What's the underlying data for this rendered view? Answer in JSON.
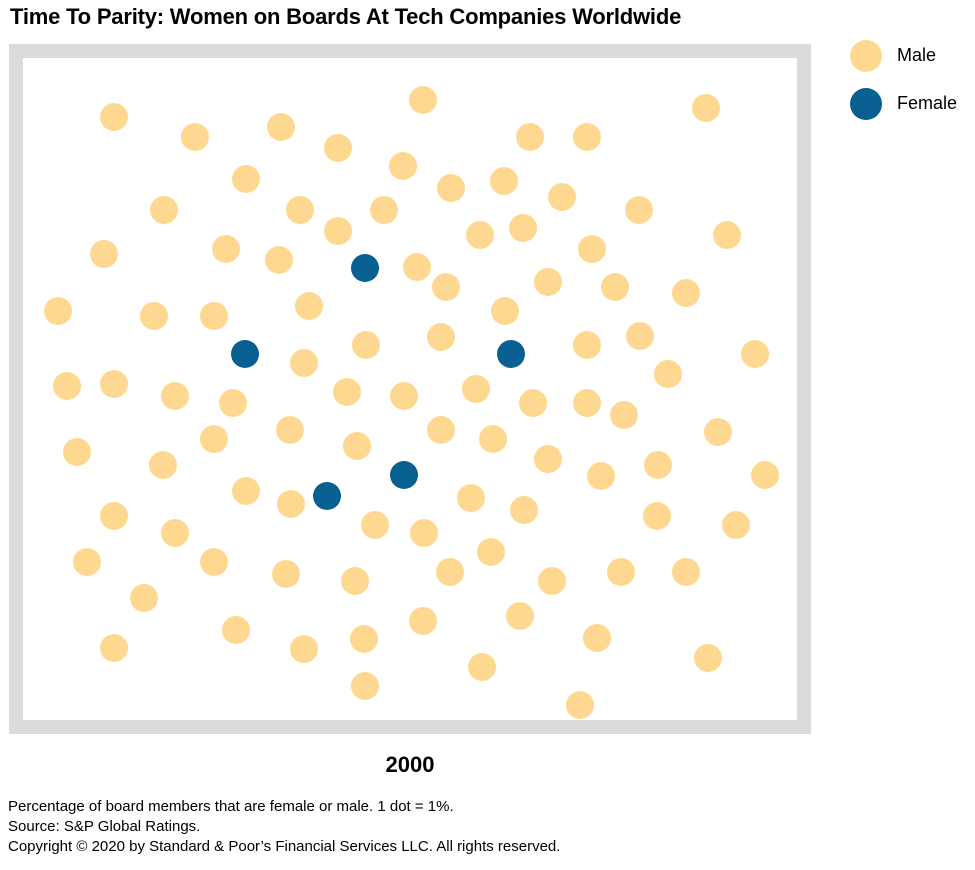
{
  "title": "Time To Parity: Women on Boards At Tech Companies Worldwide",
  "colors": {
    "male": "#fed891",
    "female": "#075f92",
    "frame": "#dadcdb"
  },
  "legend": [
    {
      "label": "Male",
      "color": "#fed891"
    },
    {
      "label": "Female",
      "color": "#075f92"
    }
  ],
  "year_label": "2000",
  "notes": [
    "Percentage of board members that are female or male. 1 dot = 1%.",
    "Source: S&P Global Ratings.",
    "Copyright © 2020 by Standard & Poor’s Financial Services LLC. All rights reserved."
  ],
  "chart_data": {
    "type": "scatter",
    "title": "Time To Parity: Women on Boards At Tech Companies Worldwide",
    "year": "2000",
    "unit": "1 dot = 1%",
    "series": [
      {
        "name": "Male",
        "value": 95
      },
      {
        "name": "Female",
        "value": 5
      }
    ]
  }
}
